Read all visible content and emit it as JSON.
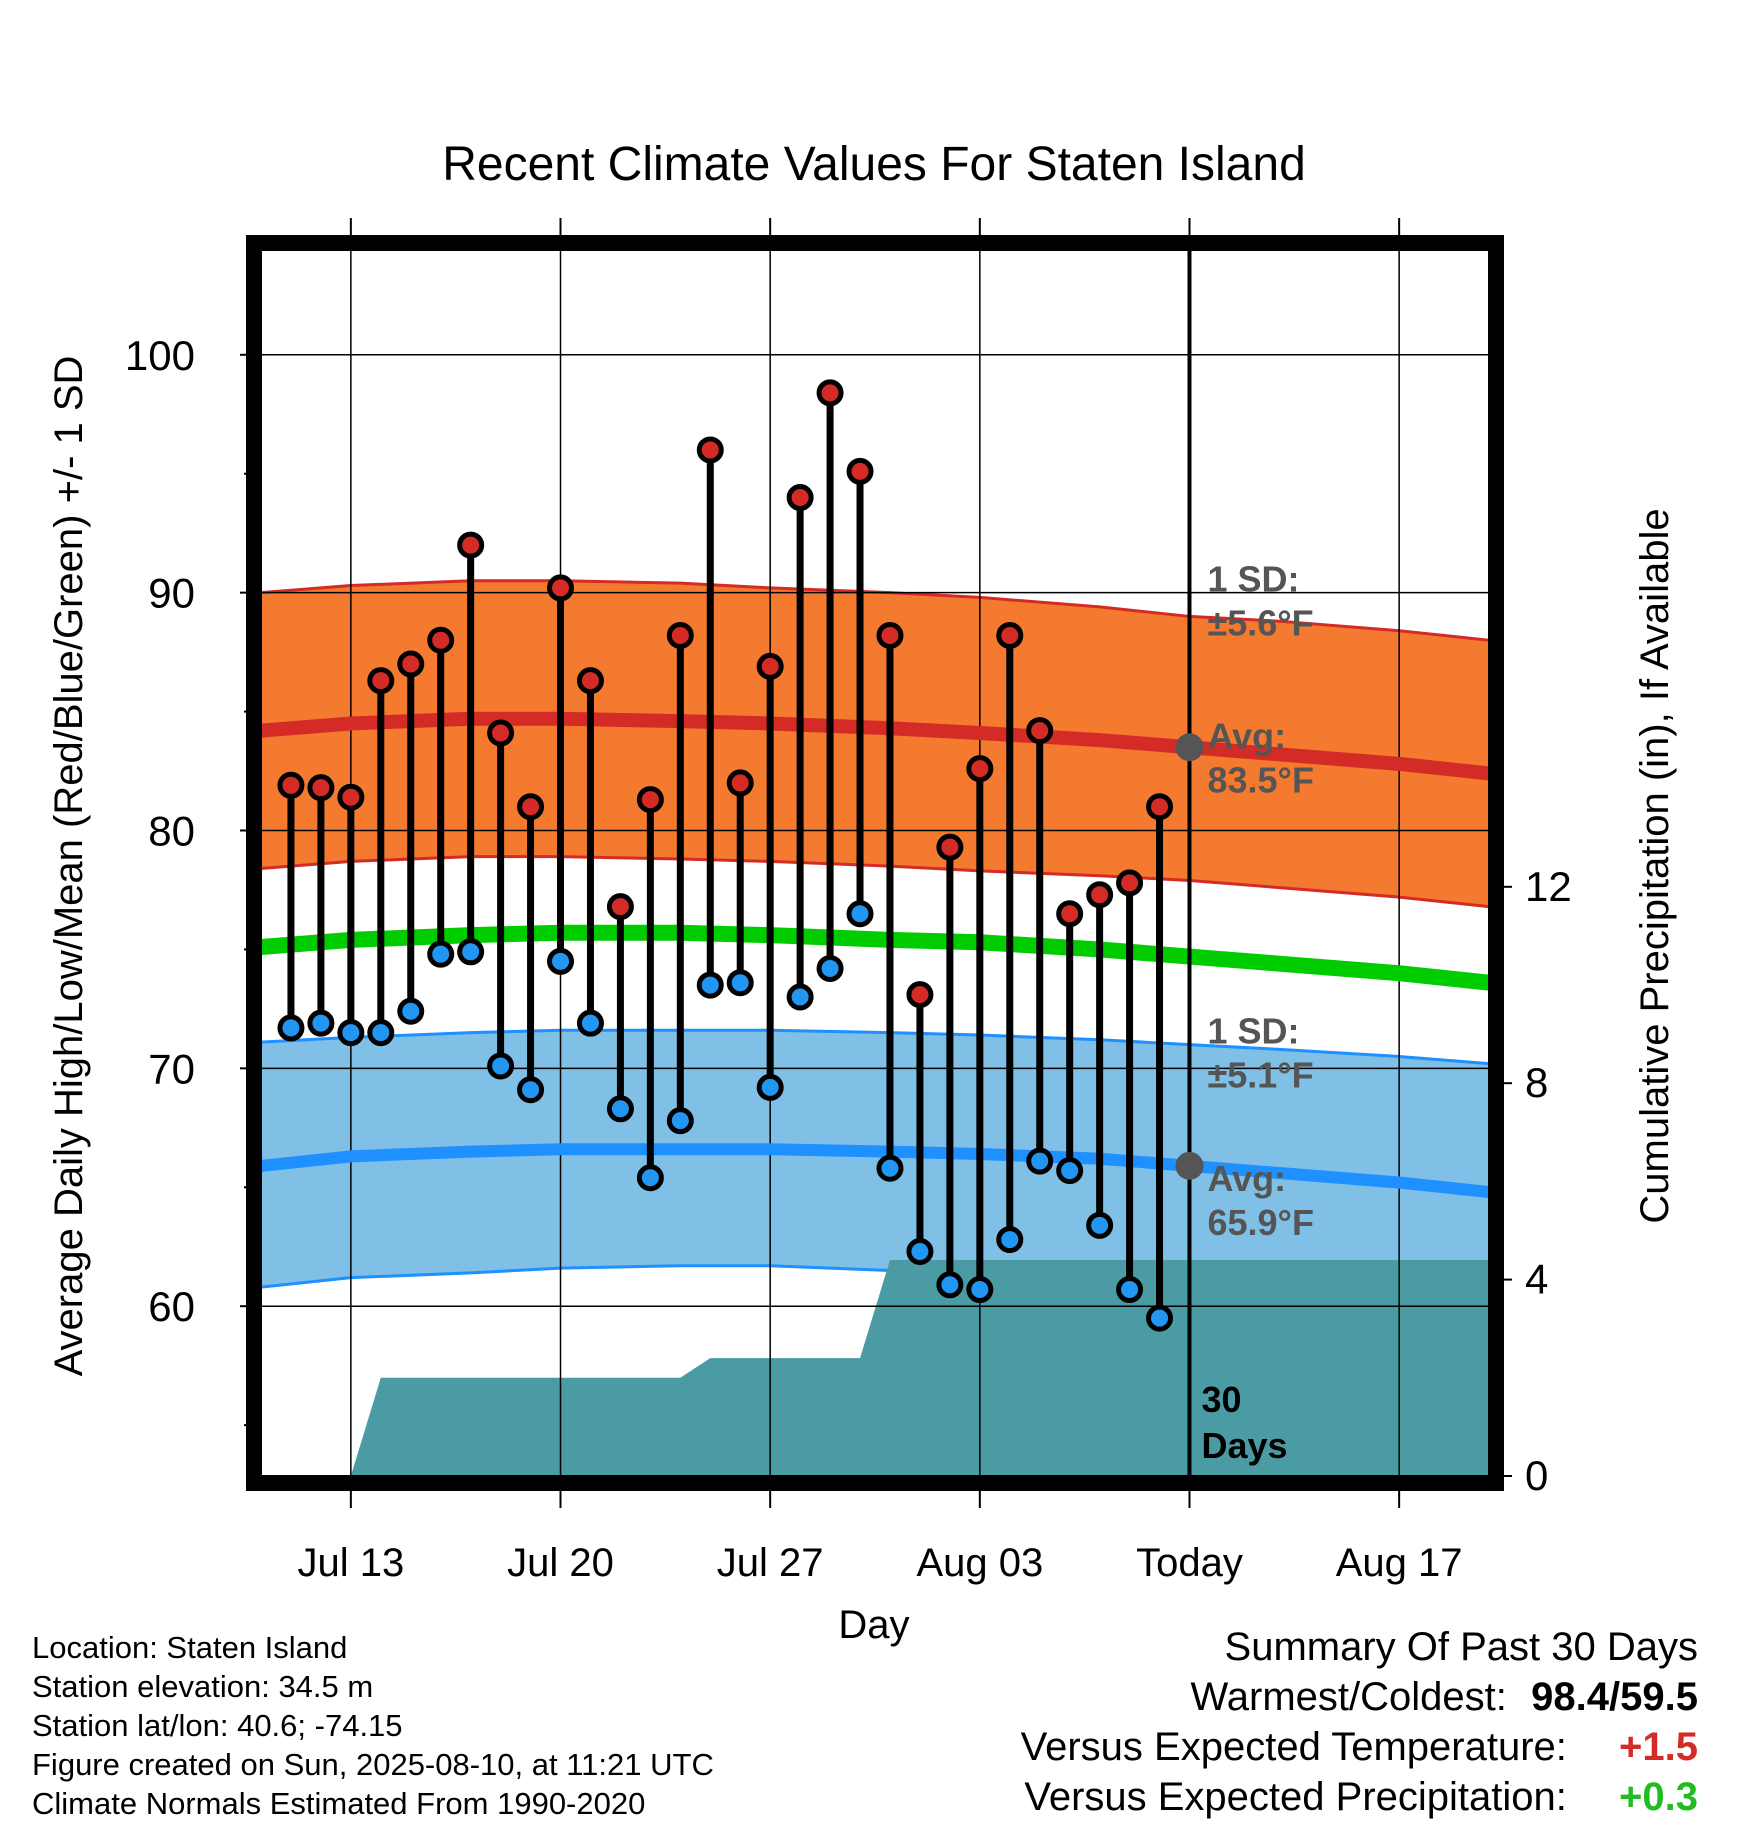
{
  "chart_data": {
    "type": "line",
    "title": "Recent Climate Values For Staten Island",
    "xlabel": "Day",
    "ylabel": "Average Daily High/Low/Mean (Red/Blue/Green) +/- 1 SD",
    "y2label": "Cumulative Precipitation (in), If Available",
    "ylim": [
      52,
      105
    ],
    "y2lim": [
      0,
      24
    ],
    "yticks": [
      60,
      70,
      80,
      90,
      100
    ],
    "y2ticks": [
      0,
      4,
      8,
      12
    ],
    "xticks": [
      {
        "day": 13,
        "label": "Jul 13"
      },
      {
        "day": 20,
        "label": "Jul 20"
      },
      {
        "day": 27,
        "label": "Jul 27"
      },
      {
        "day": 34,
        "label": "Aug 03"
      },
      {
        "day": 41,
        "label": "Today"
      },
      {
        "day": 48,
        "label": "Aug 17"
      }
    ],
    "xlim": [
      10,
      51
    ],
    "grid": true,
    "today_line": {
      "day": 41,
      "label": "30 Days"
    },
    "normals": {
      "days": [
        10,
        13,
        17,
        20,
        24,
        27,
        31,
        34,
        38,
        41,
        44,
        48,
        51
      ],
      "high_avg": [
        84.2,
        84.5,
        84.7,
        84.7,
        84.6,
        84.5,
        84.3,
        84.1,
        83.8,
        83.5,
        83.2,
        82.8,
        82.4
      ],
      "high_plus_sd": [
        90.0,
        90.3,
        90.5,
        90.5,
        90.4,
        90.2,
        90.0,
        89.8,
        89.4,
        89.0,
        88.8,
        88.4,
        88.0
      ],
      "high_minus_sd": [
        78.4,
        78.7,
        78.9,
        78.9,
        78.8,
        78.7,
        78.5,
        78.3,
        78.1,
        77.9,
        77.6,
        77.2,
        76.8
      ],
      "low_avg": [
        65.9,
        66.3,
        66.5,
        66.6,
        66.6,
        66.6,
        66.5,
        66.4,
        66.2,
        65.9,
        65.6,
        65.2,
        64.8
      ],
      "low_plus_sd": [
        71.1,
        71.3,
        71.5,
        71.6,
        71.6,
        71.6,
        71.5,
        71.4,
        71.2,
        71.0,
        70.8,
        70.5,
        70.2
      ],
      "low_minus_sd": [
        60.8,
        61.2,
        61.4,
        61.6,
        61.7,
        61.7,
        61.5,
        61.2,
        60.9,
        60.6,
        60.4,
        60.1,
        59.8
      ],
      "mean_avg": [
        75.1,
        75.4,
        75.6,
        75.7,
        75.7,
        75.6,
        75.4,
        75.3,
        75.0,
        74.7,
        74.4,
        74.0,
        73.6
      ]
    },
    "highs": [
      81.9,
      81.8,
      81.4,
      86.3,
      87.0,
      88.0,
      92.0,
      84.1,
      81.0,
      90.2,
      86.3,
      76.8,
      81.3,
      88.2,
      96.0,
      82.0,
      86.9,
      94.0,
      98.4,
      95.1,
      88.2,
      73.1,
      79.3,
      82.6,
      88.2,
      84.2,
      76.5,
      77.3,
      77.8,
      81.0
    ],
    "lows": [
      71.7,
      71.9,
      71.5,
      71.5,
      72.4,
      74.8,
      74.9,
      70.1,
      69.1,
      74.5,
      71.9,
      68.3,
      65.4,
      67.8,
      73.5,
      73.6,
      69.2,
      73.0,
      74.2,
      76.5,
      65.8,
      62.3,
      60.9,
      60.7,
      62.8,
      66.1,
      65.7,
      63.4,
      60.7,
      59.5
    ],
    "days_observed_start": 11,
    "precip": {
      "days": [
        10,
        12,
        13,
        14,
        23,
        24,
        25,
        26,
        30,
        31,
        32,
        51
      ],
      "values": [
        0.0,
        0.0,
        0.0,
        2.0,
        2.0,
        2.0,
        2.4,
        2.4,
        2.4,
        4.4,
        4.4,
        4.4
      ]
    },
    "annotations": [
      {
        "name": "high-sd",
        "line1": "1 SD:",
        "line2": "±5.6°F"
      },
      {
        "name": "high-avg",
        "line1": "Avg:",
        "line2": "83.5°F",
        "value": 83.5
      },
      {
        "name": "low-sd",
        "line1": "1 SD:",
        "line2": "±5.1°F"
      },
      {
        "name": "low-avg",
        "line1": "Avg:",
        "line2": "65.9°F",
        "value": 65.9
      }
    ],
    "colors": {
      "high_band": "#f47a30",
      "high_line": "#d42b26",
      "low_band": "#80bfe6",
      "low_line": "#1e90ff",
      "mean_line": "#00cc00",
      "precip": "#4b9ba4",
      "high_dot": "#d42b26",
      "low_dot": "#2196f3",
      "annotation": "#555555"
    }
  },
  "footer": {
    "location": "Location: Staten Island",
    "elevation": "Station elevation: 34.5 m",
    "latlon": "Station lat/lon: 40.6; -74.15",
    "created": "Figure created on Sun, 2025-08-10, at 11:21 UTC",
    "normals": "Climate Normals Estimated From 1990-2020"
  },
  "summary": {
    "title": "Summary Of Past 30 Days",
    "warm_cold_label": "Warmest/Coldest:",
    "warm_cold_value": "98.4/59.5",
    "temp_label": "Versus Expected Temperature:",
    "temp_value": "+1.5",
    "temp_color": "#d42b26",
    "precip_label": "Versus Expected Precipitation:",
    "precip_value": "+0.3",
    "precip_color": "#22bb22"
  }
}
